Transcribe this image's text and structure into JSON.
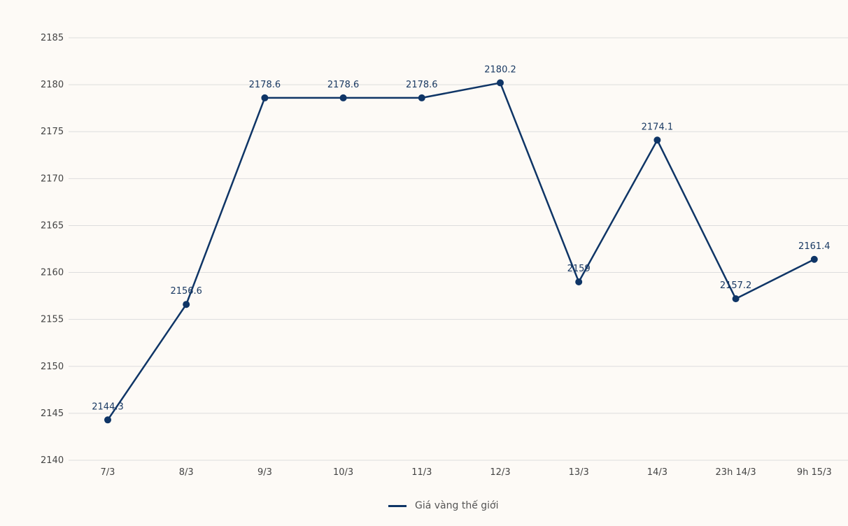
{
  "chart_data": {
    "type": "line",
    "categories": [
      "7/3",
      "8/3",
      "9/3",
      "10/3",
      "11/3",
      "12/3",
      "13/3",
      "14/3",
      "23h 14/3",
      "9h 15/3"
    ],
    "series": [
      {
        "name": "Giá vàng thế giới",
        "values": [
          2144.3,
          2156.6,
          2178.6,
          2178.6,
          2178.6,
          2180.2,
          2159,
          2174.1,
          2157.2,
          2161.4
        ],
        "labels": [
          "2144.3",
          "2156.6",
          "2178.6",
          "2178.6",
          "2178.6",
          "2180.2",
          "2159",
          "2174.1",
          "2157.2",
          "2161.4"
        ]
      }
    ],
    "ylim": [
      2140,
      2185
    ],
    "yticks": [
      "2140",
      "2145",
      "2150",
      "2155",
      "2160",
      "2165",
      "2170",
      "2175",
      "2180",
      "2185"
    ],
    "grid": true,
    "legend": "bottom-center",
    "colors": {
      "line": "#0f3566",
      "grid": "#dddddd",
      "label": "#1a3a63",
      "background": "#fdfaf6"
    }
  }
}
